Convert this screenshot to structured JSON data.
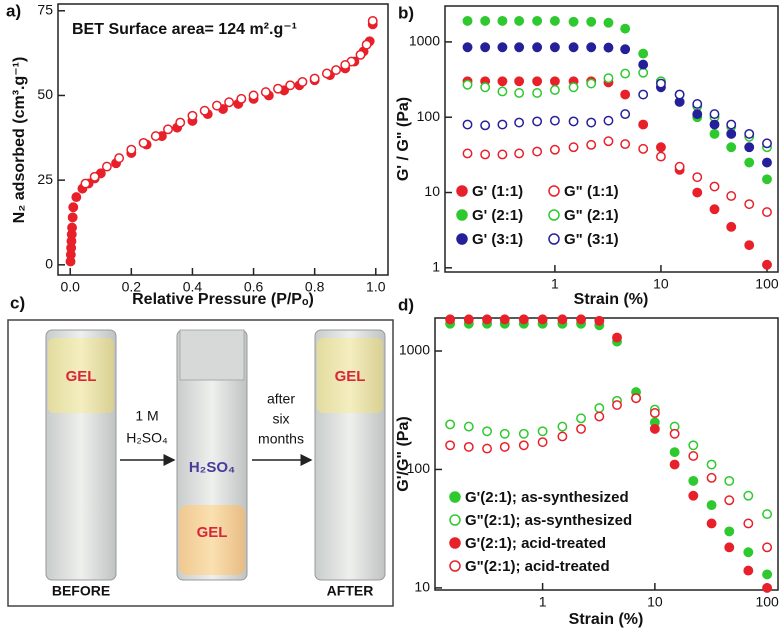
{
  "chart_data": [
    {
      "type": "scatter",
      "panel_label": "a)",
      "annotation": "BET Surface area= 124 m².g⁻¹",
      "x_label": "Relative Pressure (P/Pₒ)",
      "y_label": "N₂ adsorbed (cm³.g⁻¹)",
      "xlim": [
        -0.04,
        1.04
      ],
      "ylim": [
        -3,
        77
      ],
      "xticks": [
        {
          "value": 0,
          "label": "0.0"
        },
        0.2,
        0.4,
        0.6,
        0.8,
        {
          "value": 1,
          "label": "1.0"
        }
      ],
      "yticks": [
        0,
        25,
        50,
        75
      ],
      "series": [
        {
          "color": "#e8202a",
          "filled": true,
          "x": [
            0.001,
            0.002,
            0.003,
            0.004,
            0.005,
            0.006,
            0.008,
            0.01,
            0.02,
            0.04,
            0.06,
            0.08,
            0.1,
            0.15,
            0.2,
            0.25,
            0.3,
            0.35,
            0.4,
            0.45,
            0.5,
            0.55,
            0.6,
            0.65,
            0.7,
            0.75,
            0.8,
            0.85,
            0.9,
            0.93,
            0.96,
            0.98,
            0.99
          ],
          "values": [
            1,
            3,
            5,
            7,
            9,
            11,
            14,
            17,
            20,
            22.5,
            24,
            25.5,
            27,
            30,
            33,
            35.5,
            38,
            40.5,
            42.5,
            44.5,
            46,
            47.5,
            49,
            50,
            51.5,
            53,
            54.5,
            56,
            58,
            60,
            63,
            66,
            71
          ]
        },
        {
          "color": "#e8202a",
          "filled": false,
          "x": [
            0.99,
            0.97,
            0.95,
            0.92,
            0.9,
            0.87,
            0.84,
            0.8,
            0.76,
            0.72,
            0.68,
            0.64,
            0.6,
            0.56,
            0.52,
            0.48,
            0.44,
            0.4,
            0.36,
            0.32,
            0.28,
            0.24,
            0.2,
            0.16,
            0.12,
            0.08,
            0.05
          ],
          "values": [
            72,
            65,
            62,
            60,
            59,
            57.5,
            56.5,
            55,
            54,
            53,
            52,
            51,
            50,
            49,
            48,
            47,
            45.5,
            44,
            42,
            40,
            38,
            36,
            34,
            31.5,
            29,
            26,
            24
          ]
        }
      ]
    },
    {
      "type": "scatter",
      "panel_label": "b)",
      "x_label": "Strain (%)",
      "y_label": "G' / G\" (Pa)",
      "log_x": true,
      "log_y": true,
      "legend": "lower left",
      "xlim": [
        0.092,
        127
      ],
      "ylim": [
        0.88,
        3000
      ],
      "xticks": [
        1,
        10,
        100
      ],
      "yticks": [
        1,
        10,
        100,
        1000
      ],
      "x": [
        0.15,
        0.22,
        0.32,
        0.46,
        0.68,
        1,
        1.5,
        2.2,
        3.2,
        4.6,
        6.8,
        10,
        15,
        22,
        32,
        46,
        68,
        100
      ],
      "series": [
        {
          "name": "G' (1:1)",
          "color": "#e8202a",
          "filled": true,
          "values": [
            300,
            300,
            300,
            300,
            300,
            300,
            300,
            300,
            290,
            200,
            80,
            40,
            20,
            10,
            6,
            3.5,
            2,
            1.1
          ]
        },
        {
          "name": "G\" (1:1)",
          "color": "#e8202a",
          "filled": false,
          "values": [
            33,
            32,
            32,
            33,
            35,
            37,
            40,
            43,
            48,
            44,
            38,
            30,
            22,
            16,
            12,
            9,
            7,
            5.5
          ]
        },
        {
          "name": "G' (2:1)",
          "color": "#2ec92e",
          "filled": true,
          "values": [
            1900,
            1900,
            1900,
            1900,
            1900,
            1900,
            1850,
            1850,
            1800,
            1500,
            700,
            300,
            160,
            100,
            60,
            40,
            25,
            15
          ]
        },
        {
          "name": "G\" (2:1)",
          "color": "#2ec92e",
          "filled": false,
          "values": [
            270,
            250,
            220,
            210,
            210,
            230,
            250,
            280,
            330,
            380,
            390,
            300,
            200,
            140,
            100,
            75,
            55,
            40
          ]
        },
        {
          "name": "G' (3:1)",
          "color": "#25209a",
          "filled": true,
          "values": [
            850,
            850,
            850,
            850,
            850,
            850,
            850,
            850,
            840,
            800,
            500,
            250,
            160,
            110,
            80,
            60,
            40,
            25
          ]
        },
        {
          "name": "G\" (3:1)",
          "color": "#25209a",
          "filled": false,
          "values": [
            80,
            78,
            80,
            85,
            88,
            90,
            88,
            85,
            90,
            110,
            200,
            280,
            200,
            150,
            110,
            80,
            60,
            45
          ]
        }
      ]
    },
    {
      "type": "scatter",
      "panel_label": "d)",
      "x_label": "Strain (%)",
      "y_label": "G'/G\" (Pa)",
      "log_x": true,
      "log_y": true,
      "legend": "lower left",
      "xlim": [
        0.11,
        125
      ],
      "ylim": [
        9.6,
        1900
      ],
      "xticks": [
        1,
        10,
        100
      ],
      "yticks": [
        10,
        100,
        1000
      ],
      "x": [
        0.15,
        0.22,
        0.32,
        0.46,
        0.68,
        1,
        1.5,
        2.2,
        3.2,
        4.6,
        6.8,
        10,
        15,
        22,
        32,
        46,
        68,
        100
      ],
      "series": [
        {
          "name": "G'(2:1); as-synthesized",
          "color": "#2ec92e",
          "filled": true,
          "values": [
            1700,
            1700,
            1700,
            1700,
            1700,
            1700,
            1700,
            1700,
            1650,
            1200,
            450,
            250,
            140,
            80,
            50,
            30,
            20,
            13
          ]
        },
        {
          "name": "G\"(2:1); as-synthesized",
          "color": "#2ec92e",
          "filled": false,
          "values": [
            240,
            230,
            210,
            200,
            200,
            210,
            230,
            270,
            330,
            380,
            400,
            320,
            230,
            160,
            110,
            80,
            60,
            42
          ]
        },
        {
          "name": "G'(2:1); acid-treated",
          "color": "#e8202a",
          "filled": true,
          "values": [
            1850,
            1850,
            1850,
            1850,
            1850,
            1850,
            1850,
            1850,
            1800,
            1300,
            400,
            220,
            110,
            60,
            35,
            22,
            14,
            10
          ]
        },
        {
          "name": "G\"(2:1); acid-treated",
          "color": "#e8202a",
          "filled": false,
          "values": [
            160,
            155,
            150,
            155,
            160,
            170,
            190,
            220,
            280,
            350,
            400,
            300,
            200,
            130,
            85,
            55,
            35,
            22
          ]
        }
      ]
    }
  ],
  "panel_c": {
    "label": "c)",
    "vial_labels": [
      "GEL",
      "H₂SO₄",
      "GEL",
      "GEL"
    ],
    "step1": [
      "1 M",
      "H₂SO₄"
    ],
    "step2": [
      "after",
      "six",
      "months"
    ],
    "captions": [
      "BEFORE",
      "AFTER"
    ]
  }
}
